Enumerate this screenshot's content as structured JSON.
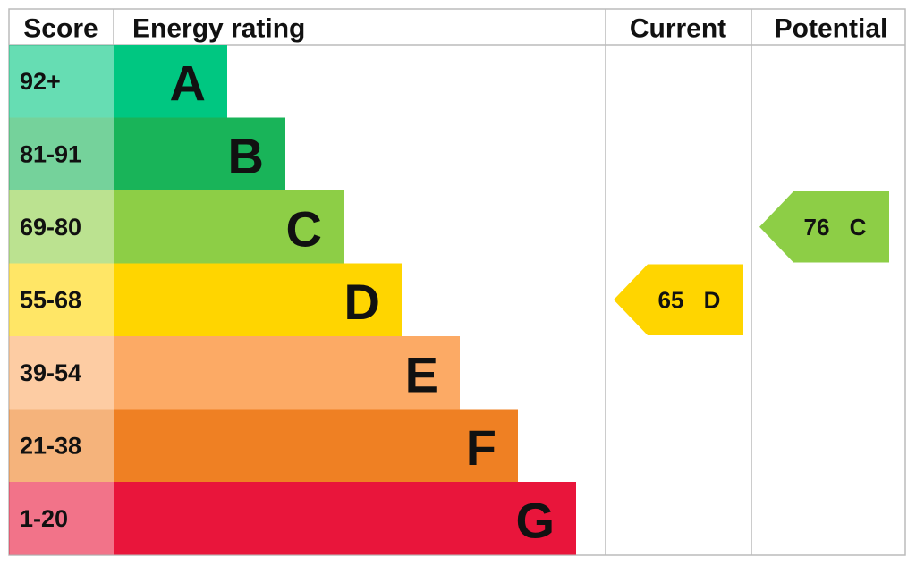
{
  "chart_data": {
    "type": "epc",
    "headers": {
      "score": "Score",
      "rating": "Energy rating",
      "current": "Current",
      "potential": "Potential"
    },
    "bands": [
      {
        "score": "92+",
        "letter": "A",
        "color": "#00c781"
      },
      {
        "score": "81-91",
        "letter": "B",
        "color": "#19b459"
      },
      {
        "score": "69-80",
        "letter": "C",
        "color": "#8dce46"
      },
      {
        "score": "55-68",
        "letter": "D",
        "color": "#ffd500"
      },
      {
        "score": "39-54",
        "letter": "E",
        "color": "#fcaa65"
      },
      {
        "score": "21-38",
        "letter": "F",
        "color": "#ef8023"
      },
      {
        "score": "1-20",
        "letter": "G",
        "color": "#e9153b"
      }
    ],
    "current": {
      "value": 65,
      "letter": "D"
    },
    "potential": {
      "value": 76,
      "letter": "C"
    }
  }
}
